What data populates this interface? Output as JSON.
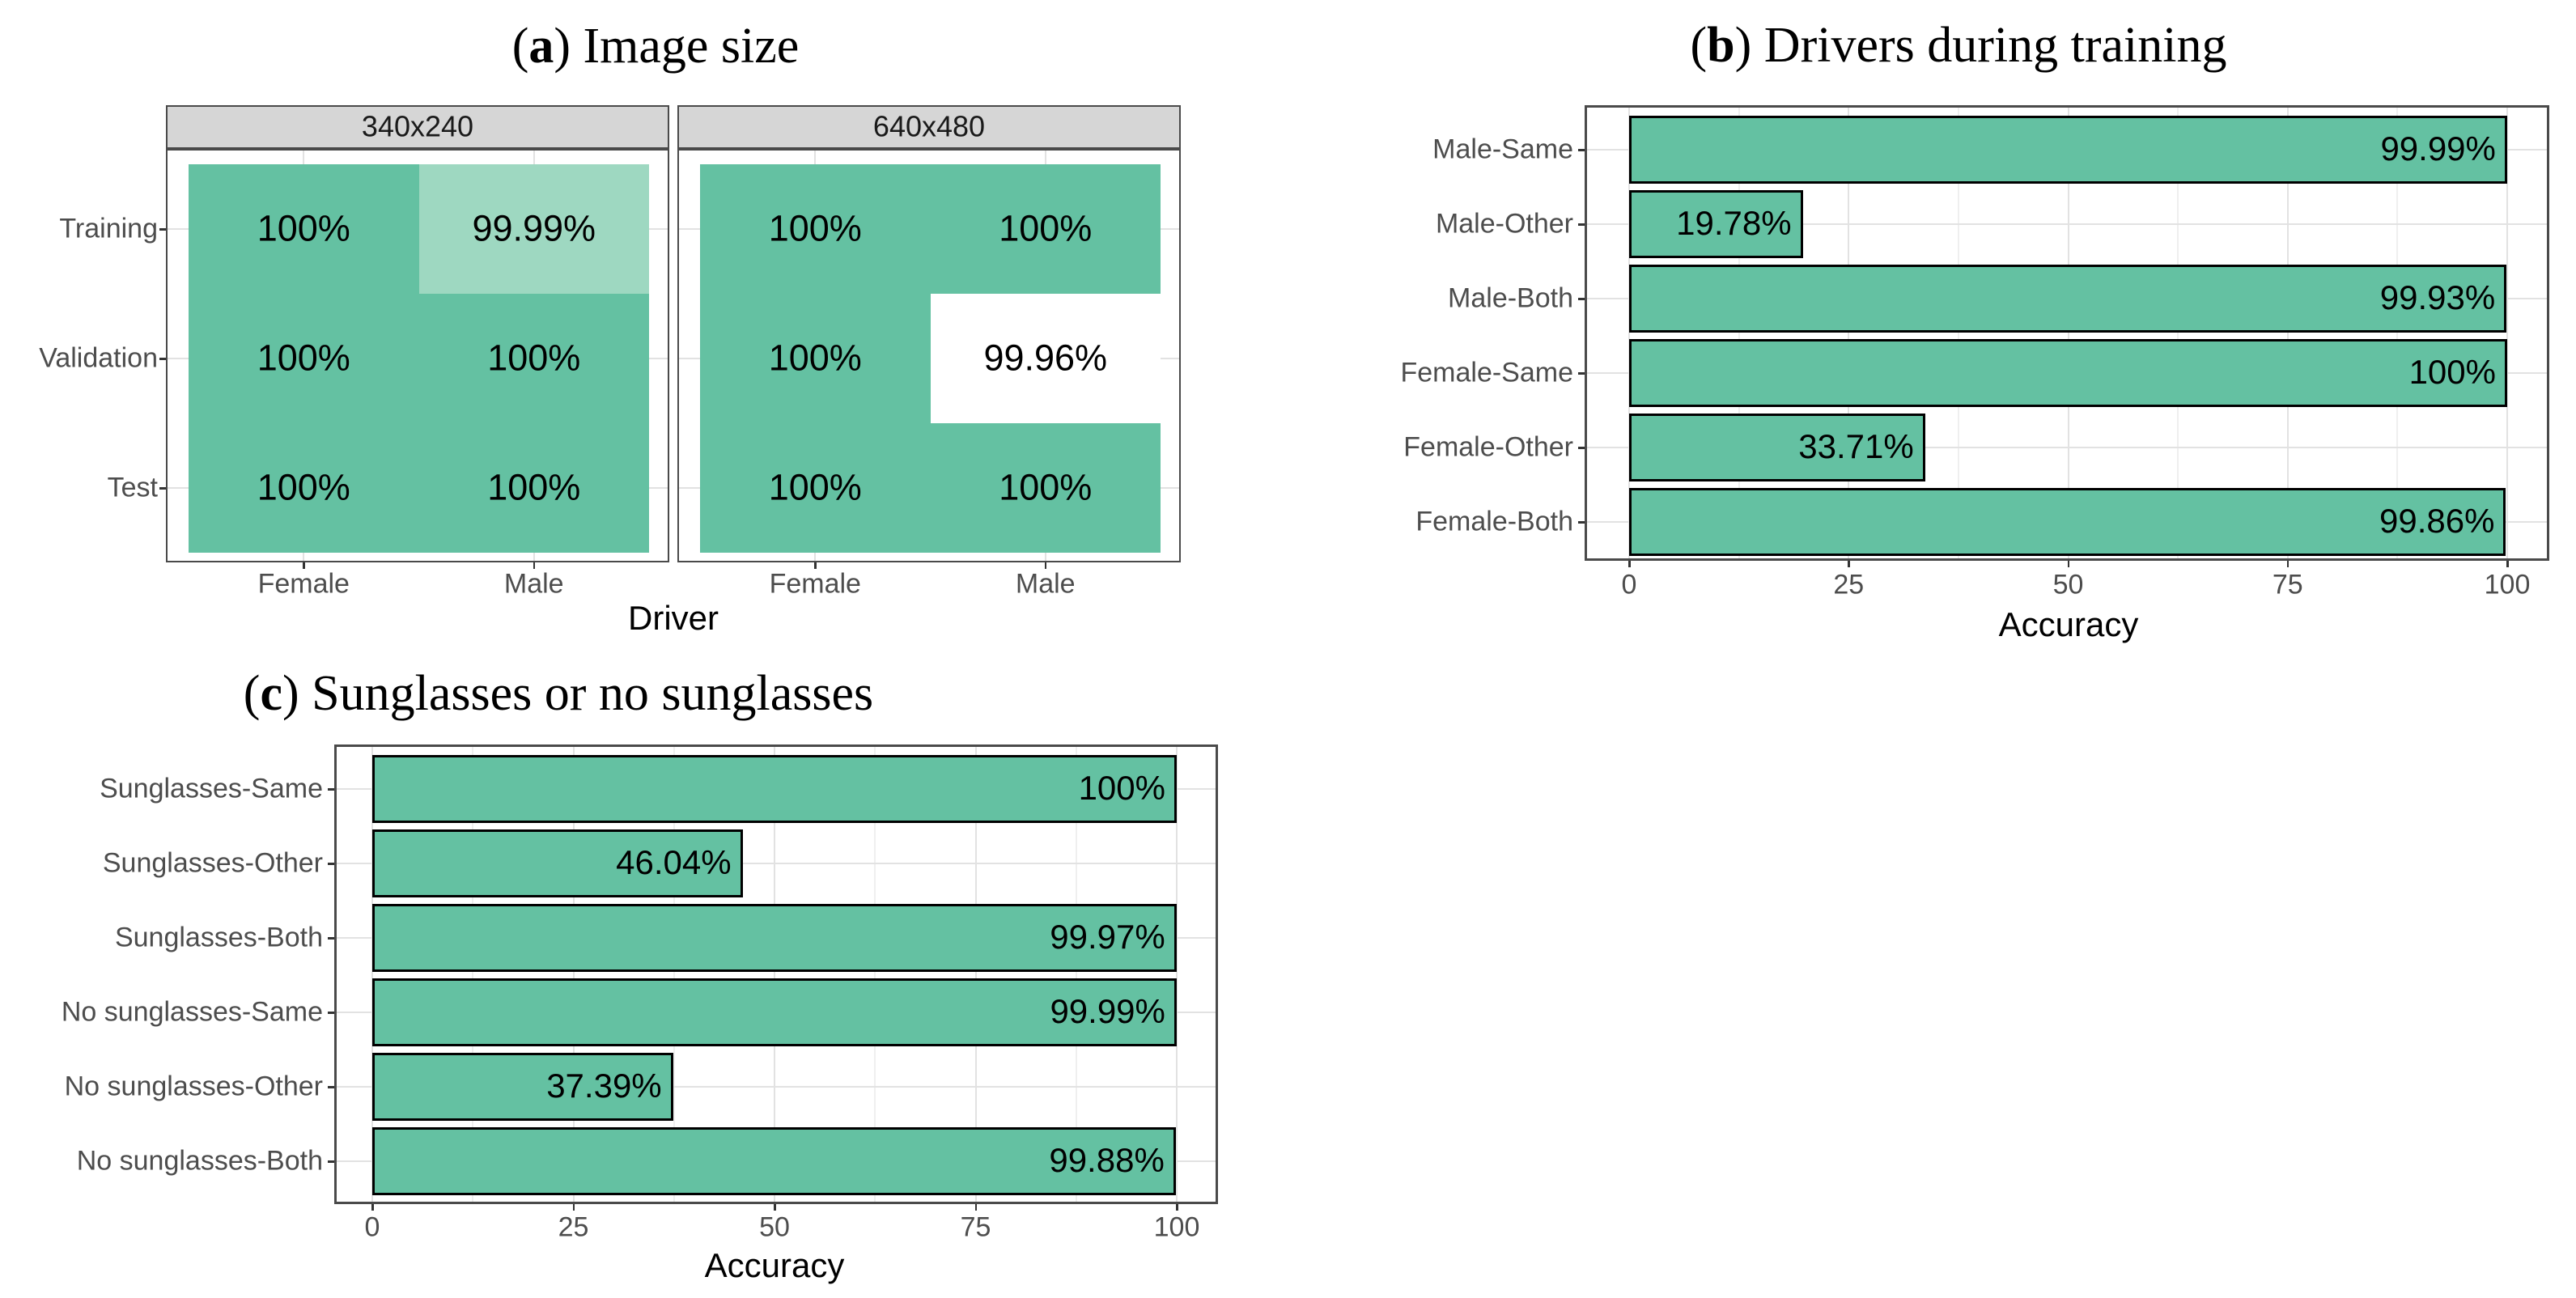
{
  "colors": {
    "fill_green": "#64C1A2",
    "fill_light_green": "#9ED8C1",
    "fill_white": "#FFFFFF",
    "bar_outline": "#000000",
    "strip_bg": "#D6D6D6",
    "panel_border": "#4A4A4A",
    "grid_major": "#E2E2E2",
    "grid_minor": "#EFEFEF",
    "text_gray": "#4D4D4D",
    "text_black": "#000000",
    "tick": "#333333"
  },
  "chart_data": [
    {
      "id": "a",
      "type": "heatmap",
      "title": {
        "pre": "(",
        "letter": "a",
        "post": ") Image size"
      },
      "facets": [
        "340x240",
        "640x480"
      ],
      "x_categories": [
        "Female",
        "Male"
      ],
      "y_categories": [
        "Training",
        "Validation",
        "Test"
      ],
      "xlabel": "Driver",
      "legend": "none",
      "cells": [
        {
          "facet": "340x240",
          "x": "Female",
          "y": "Training",
          "label": "100%",
          "value": 100,
          "fill": "green"
        },
        {
          "facet": "340x240",
          "x": "Male",
          "y": "Training",
          "label": "99.99%",
          "value": 99.99,
          "fill": "light_green"
        },
        {
          "facet": "340x240",
          "x": "Female",
          "y": "Validation",
          "label": "100%",
          "value": 100,
          "fill": "green"
        },
        {
          "facet": "340x240",
          "x": "Male",
          "y": "Validation",
          "label": "100%",
          "value": 100,
          "fill": "green"
        },
        {
          "facet": "340x240",
          "x": "Female",
          "y": "Test",
          "label": "100%",
          "value": 100,
          "fill": "green"
        },
        {
          "facet": "340x240",
          "x": "Male",
          "y": "Test",
          "label": "100%",
          "value": 100,
          "fill": "green"
        },
        {
          "facet": "640x480",
          "x": "Female",
          "y": "Training",
          "label": "100%",
          "value": 100,
          "fill": "green"
        },
        {
          "facet": "640x480",
          "x": "Male",
          "y": "Training",
          "label": "100%",
          "value": 100,
          "fill": "green"
        },
        {
          "facet": "640x480",
          "x": "Female",
          "y": "Validation",
          "label": "100%",
          "value": 100,
          "fill": "green"
        },
        {
          "facet": "640x480",
          "x": "Male",
          "y": "Validation",
          "label": "99.96%",
          "value": 99.96,
          "fill": "white"
        },
        {
          "facet": "640x480",
          "x": "Female",
          "y": "Test",
          "label": "100%",
          "value": 100,
          "fill": "green"
        },
        {
          "facet": "640x480",
          "x": "Male",
          "y": "Test",
          "label": "100%",
          "value": 100,
          "fill": "green"
        }
      ]
    },
    {
      "id": "b",
      "type": "bar",
      "orientation": "horizontal",
      "title": {
        "pre": "(",
        "letter": "b",
        "post": ") Drivers during training"
      },
      "categories": [
        "Male-Same",
        "Male-Other",
        "Male-Both",
        "Female-Same",
        "Female-Other",
        "Female-Both"
      ],
      "values": [
        99.99,
        19.78,
        99.93,
        100,
        33.71,
        99.86
      ],
      "labels": [
        "99.99%",
        "19.78%",
        "99.93%",
        "100%",
        "33.71%",
        "99.86%"
      ],
      "xlabel": "Accuracy",
      "x_ticks": [
        0,
        25,
        50,
        75,
        100
      ],
      "x_minor_ticks": [
        12.5,
        37.5,
        62.5,
        87.5
      ],
      "xlim": [
        0,
        100
      ],
      "grid": true,
      "legend": "none"
    },
    {
      "id": "c",
      "type": "bar",
      "orientation": "horizontal",
      "title": {
        "pre": "(",
        "letter": "c",
        "post": ") Sunglasses or no sunglasses"
      },
      "categories": [
        "Sunglasses-Same",
        "Sunglasses-Other",
        "Sunglasses-Both",
        "No sunglasses-Same",
        "No sunglasses-Other",
        "No sunglasses-Both"
      ],
      "values": [
        100,
        46.04,
        99.97,
        99.99,
        37.39,
        99.88
      ],
      "labels": [
        "100%",
        "46.04%",
        "99.97%",
        "99.99%",
        "37.39%",
        "99.88%"
      ],
      "xlabel": "Accuracy",
      "x_ticks": [
        0,
        25,
        50,
        75,
        100
      ],
      "x_minor_ticks": [
        12.5,
        37.5,
        62.5,
        87.5
      ],
      "xlim": [
        0,
        100
      ],
      "grid": true,
      "legend": "none"
    }
  ]
}
